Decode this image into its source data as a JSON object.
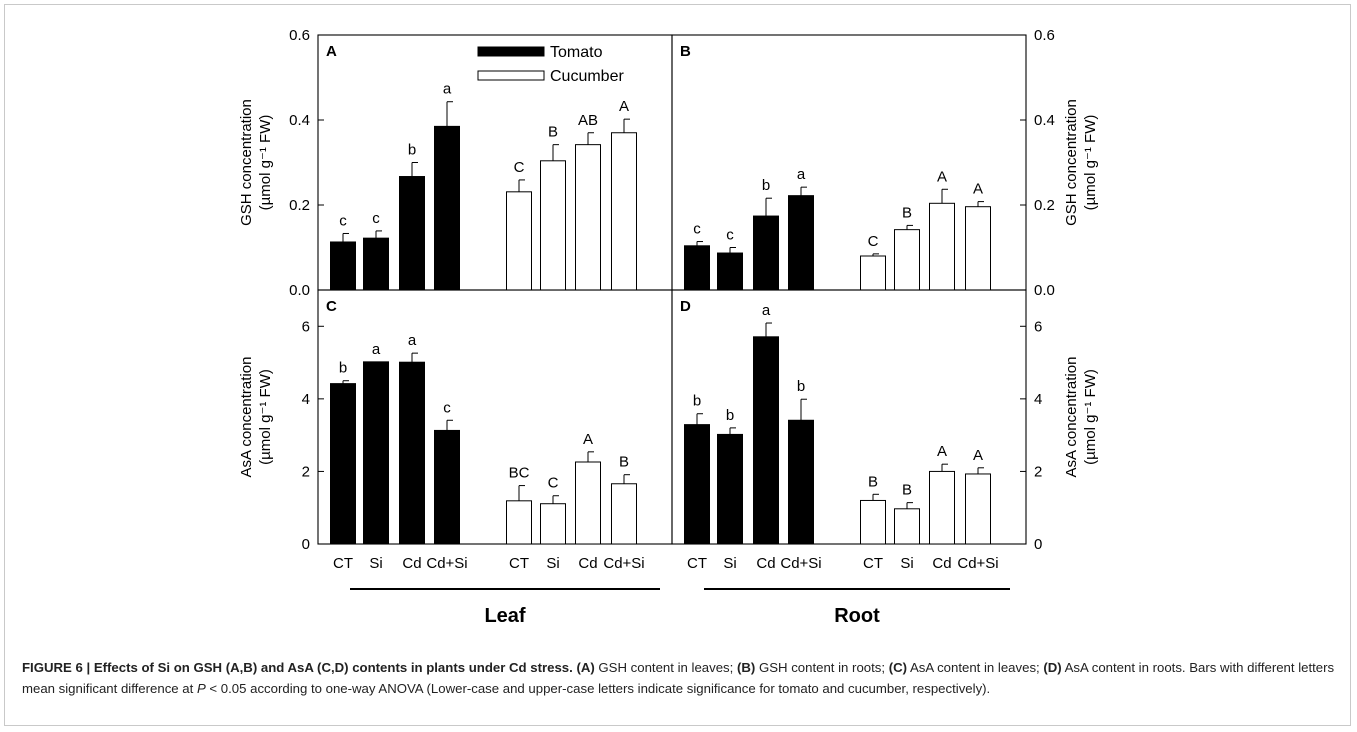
{
  "figure": {
    "caption_label": "FIGURE 6 | Effects of Si on GSH (A,B) and AsA (C,D) contents in plants under Cd stress.",
    "caption_parts": [
      {
        "bold": true,
        "text": "(A)"
      },
      {
        "bold": false,
        "text": " GSH content in leaves; "
      },
      {
        "bold": true,
        "text": "(B)"
      },
      {
        "bold": false,
        "text": " GSH content in roots; "
      },
      {
        "bold": true,
        "text": "(C)"
      },
      {
        "bold": false,
        "text": " AsA content in leaves; "
      },
      {
        "bold": true,
        "text": "(D)"
      },
      {
        "bold": false,
        "text": " AsA content in roots. Bars with different letters mean significant difference at "
      },
      {
        "bold": false,
        "italic": true,
        "text": "P"
      },
      {
        "bold": false,
        "text": " < 0.05 according to one-way ANOVA (Lower-case and upper-case letters indicate significance for tomato and cucumber, respectively)."
      }
    ],
    "group_labels": [
      "Leaf",
      "Root"
    ],
    "x_tick_labels": [
      "CT",
      "Si",
      "Cd",
      "Cd+Si",
      "CT",
      "Si",
      "Cd",
      "Cd+Si"
    ]
  },
  "chart_data": [
    {
      "panel": "A",
      "type": "bar",
      "organ": "Leaf",
      "ylabel_line1": "GSH concentration",
      "ylabel_line2": "(µmol g⁻¹ FW)",
      "ylim": [
        0,
        0.6
      ],
      "yticks": [
        "0.0",
        "0.2",
        "0.4",
        "0.6"
      ],
      "categories": [
        "CT",
        "Si",
        "Cd",
        "Cd+Si"
      ],
      "series": [
        {
          "name": "Tomato",
          "color": "#000000",
          "values": [
            0.113,
            0.122,
            0.267,
            0.385
          ],
          "errors": [
            0.02,
            0.017,
            0.033,
            0.058
          ],
          "letters": [
            "c",
            "c",
            "b",
            "a"
          ]
        },
        {
          "name": "Cucumber",
          "color": "#ffffff",
          "values": [
            0.231,
            0.304,
            0.342,
            0.37
          ],
          "errors": [
            0.028,
            0.038,
            0.028,
            0.032
          ],
          "letters": [
            "C",
            "B",
            "AB",
            "A"
          ]
        }
      ],
      "legend": "top-center"
    },
    {
      "panel": "B",
      "type": "bar",
      "organ": "Root",
      "ylabel_line1": "GSH concentration",
      "ylabel_line2": "(µmol g⁻¹ FW)",
      "ylim": [
        0,
        0.6
      ],
      "yticks": [
        "0.0",
        "0.2",
        "0.4",
        "0.6"
      ],
      "categories": [
        "CT",
        "Si",
        "Cd",
        "Cd+Si"
      ],
      "series": [
        {
          "name": "Tomato",
          "color": "#000000",
          "values": [
            0.104,
            0.087,
            0.174,
            0.222
          ],
          "errors": [
            0.01,
            0.013,
            0.042,
            0.02
          ],
          "letters": [
            "c",
            "c",
            "b",
            "a"
          ]
        },
        {
          "name": "Cucumber",
          "color": "#ffffff",
          "values": [
            0.08,
            0.142,
            0.204,
            0.196
          ],
          "errors": [
            0.005,
            0.01,
            0.033,
            0.012
          ],
          "letters": [
            "C",
            "B",
            "A",
            "A"
          ]
        }
      ]
    },
    {
      "panel": "C",
      "type": "bar",
      "organ": "Leaf",
      "ylabel_line1": "AsA concentration",
      "ylabel_line2": "(µmol g⁻¹ FW)",
      "ylim": [
        0,
        7
      ],
      "yticks": [
        "0",
        "2",
        "4",
        "6"
      ],
      "categories": [
        "CT",
        "Si",
        "Cd",
        "Cd+Si"
      ],
      "series": [
        {
          "name": "Tomato",
          "color": "#000000",
          "values": [
            4.42,
            5.02,
            5.01,
            3.13
          ],
          "errors": [
            0.08,
            0.0,
            0.25,
            0.28
          ],
          "letters": [
            "b",
            "a",
            "a",
            "c"
          ]
        },
        {
          "name": "Cucumber",
          "color": "#ffffff",
          "values": [
            1.19,
            1.11,
            2.26,
            1.66
          ],
          "errors": [
            0.42,
            0.22,
            0.28,
            0.25
          ],
          "letters": [
            "BC",
            "C",
            "A",
            "B"
          ]
        }
      ]
    },
    {
      "panel": "D",
      "type": "bar",
      "organ": "Root",
      "ylabel_line1": "AsA concentration",
      "ylabel_line2": "(µmol g⁻¹ FW)",
      "ylim": [
        0,
        7
      ],
      "yticks": [
        "0",
        "2",
        "4",
        "6"
      ],
      "categories": [
        "CT",
        "Si",
        "Cd",
        "Cd+Si"
      ],
      "series": [
        {
          "name": "Tomato",
          "color": "#000000",
          "values": [
            3.29,
            3.02,
            5.71,
            3.41
          ],
          "errors": [
            0.3,
            0.18,
            0.38,
            0.58
          ],
          "letters": [
            "b",
            "b",
            "a",
            "b"
          ]
        },
        {
          "name": "Cucumber",
          "color": "#ffffff",
          "values": [
            1.2,
            0.97,
            2.0,
            1.93
          ],
          "errors": [
            0.17,
            0.17,
            0.2,
            0.17
          ],
          "letters": [
            "B",
            "B",
            "A",
            "A"
          ]
        }
      ]
    }
  ]
}
